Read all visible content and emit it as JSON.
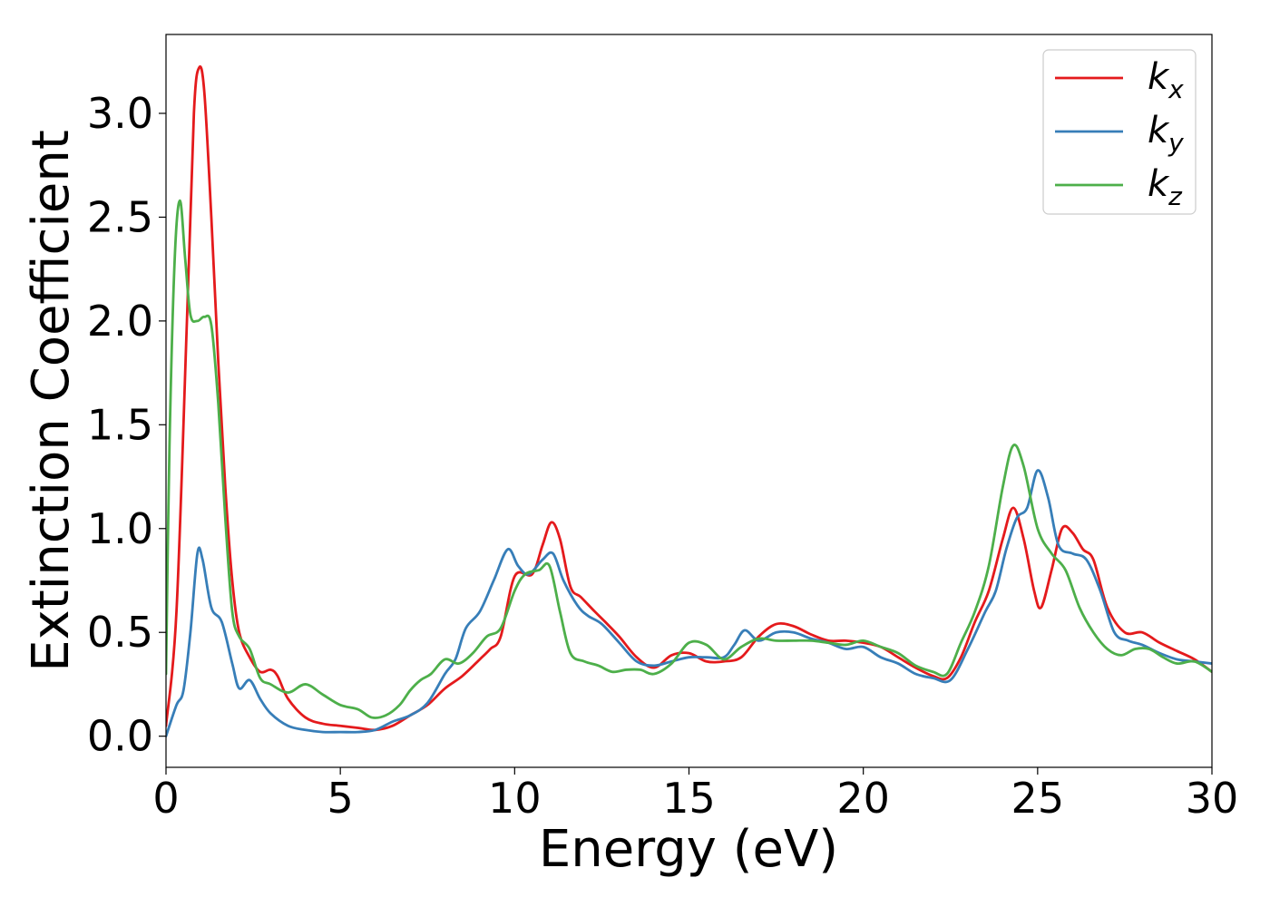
{
  "chart_data": {
    "type": "line",
    "xlabel": "Energy (eV)",
    "ylabel": "Extinction Coefficient",
    "xlim": [
      0,
      30
    ],
    "ylim": [
      -0.15,
      3.38
    ],
    "x_ticks": [
      0,
      5,
      10,
      15,
      20,
      25,
      30
    ],
    "y_ticks": [
      0.0,
      0.5,
      1.0,
      1.5,
      2.0,
      2.5,
      3.0
    ],
    "x_tick_labels": [
      "0",
      "5",
      "10",
      "15",
      "20",
      "25",
      "30"
    ],
    "y_tick_labels": [
      "0.0",
      "0.5",
      "1.0",
      "1.5",
      "2.0",
      "2.5",
      "3.0"
    ],
    "grid": false,
    "legend_position": "top-right",
    "series": [
      {
        "name": "k_x",
        "legend_base": "k",
        "legend_sub": "x",
        "color": "#e41a1c",
        "points": [
          [
            0,
            0.05
          ],
          [
            0.3,
            0.6
          ],
          [
            0.6,
            2.0
          ],
          [
            0.8,
            3.0
          ],
          [
            0.95,
            3.22
          ],
          [
            1.1,
            3.1
          ],
          [
            1.3,
            2.5
          ],
          [
            1.5,
            1.8
          ],
          [
            1.7,
            1.2
          ],
          [
            1.9,
            0.75
          ],
          [
            2.1,
            0.5
          ],
          [
            2.4,
            0.38
          ],
          [
            2.7,
            0.31
          ],
          [
            3.0,
            0.32
          ],
          [
            3.2,
            0.29
          ],
          [
            3.5,
            0.18
          ],
          [
            4.0,
            0.09
          ],
          [
            4.5,
            0.06
          ],
          [
            5.0,
            0.05
          ],
          [
            5.5,
            0.04
          ],
          [
            6.0,
            0.03
          ],
          [
            6.5,
            0.05
          ],
          [
            7.0,
            0.1
          ],
          [
            7.5,
            0.15
          ],
          [
            8.0,
            0.23
          ],
          [
            8.5,
            0.29
          ],
          [
            9.0,
            0.37
          ],
          [
            9.3,
            0.42
          ],
          [
            9.6,
            0.48
          ],
          [
            10.0,
            0.77
          ],
          [
            10.5,
            0.78
          ],
          [
            10.8,
            0.92
          ],
          [
            11.05,
            1.03
          ],
          [
            11.3,
            0.95
          ],
          [
            11.6,
            0.72
          ],
          [
            11.9,
            0.67
          ],
          [
            12.3,
            0.6
          ],
          [
            12.6,
            0.55
          ],
          [
            13.0,
            0.48
          ],
          [
            13.5,
            0.38
          ],
          [
            14.0,
            0.33
          ],
          [
            14.5,
            0.39
          ],
          [
            15.0,
            0.4
          ],
          [
            15.5,
            0.36
          ],
          [
            16.0,
            0.36
          ],
          [
            16.5,
            0.38
          ],
          [
            17.0,
            0.48
          ],
          [
            17.5,
            0.54
          ],
          [
            18.0,
            0.53
          ],
          [
            18.5,
            0.49
          ],
          [
            19.0,
            0.46
          ],
          [
            19.5,
            0.46
          ],
          [
            20.0,
            0.45
          ],
          [
            20.5,
            0.43
          ],
          [
            21.0,
            0.38
          ],
          [
            21.5,
            0.33
          ],
          [
            22.0,
            0.29
          ],
          [
            22.4,
            0.28
          ],
          [
            22.8,
            0.38
          ],
          [
            23.2,
            0.55
          ],
          [
            23.6,
            0.7
          ],
          [
            24.0,
            0.95
          ],
          [
            24.3,
            1.1
          ],
          [
            24.6,
            0.95
          ],
          [
            24.9,
            0.7
          ],
          [
            25.1,
            0.62
          ],
          [
            25.4,
            0.8
          ],
          [
            25.7,
            1.0
          ],
          [
            26.0,
            0.98
          ],
          [
            26.3,
            0.9
          ],
          [
            26.6,
            0.85
          ],
          [
            27.0,
            0.62
          ],
          [
            27.5,
            0.5
          ],
          [
            28.0,
            0.5
          ],
          [
            28.5,
            0.45
          ],
          [
            29.0,
            0.41
          ],
          [
            29.5,
            0.37
          ],
          [
            30.0,
            0.31
          ]
        ]
      },
      {
        "name": "k_y",
        "legend_base": "k",
        "legend_sub": "y",
        "color": "#377eb8",
        "points": [
          [
            0,
            0.0
          ],
          [
            0.3,
            0.15
          ],
          [
            0.5,
            0.22
          ],
          [
            0.7,
            0.5
          ],
          [
            0.9,
            0.88
          ],
          [
            1.05,
            0.85
          ],
          [
            1.3,
            0.62
          ],
          [
            1.6,
            0.55
          ],
          [
            1.9,
            0.35
          ],
          [
            2.1,
            0.23
          ],
          [
            2.4,
            0.27
          ],
          [
            2.7,
            0.18
          ],
          [
            3.0,
            0.11
          ],
          [
            3.5,
            0.05
          ],
          [
            4.0,
            0.03
          ],
          [
            4.5,
            0.02
          ],
          [
            5.0,
            0.02
          ],
          [
            5.5,
            0.02
          ],
          [
            6.0,
            0.03
          ],
          [
            6.5,
            0.07
          ],
          [
            7.0,
            0.1
          ],
          [
            7.5,
            0.16
          ],
          [
            8.0,
            0.3
          ],
          [
            8.3,
            0.37
          ],
          [
            8.6,
            0.52
          ],
          [
            9.0,
            0.6
          ],
          [
            9.4,
            0.75
          ],
          [
            9.8,
            0.9
          ],
          [
            10.1,
            0.82
          ],
          [
            10.4,
            0.78
          ],
          [
            10.8,
            0.85
          ],
          [
            11.1,
            0.88
          ],
          [
            11.4,
            0.75
          ],
          [
            11.8,
            0.63
          ],
          [
            12.1,
            0.58
          ],
          [
            12.5,
            0.54
          ],
          [
            13.0,
            0.45
          ],
          [
            13.5,
            0.36
          ],
          [
            14.0,
            0.34
          ],
          [
            14.5,
            0.36
          ],
          [
            15.0,
            0.38
          ],
          [
            15.5,
            0.38
          ],
          [
            16.0,
            0.38
          ],
          [
            16.3,
            0.44
          ],
          [
            16.6,
            0.51
          ],
          [
            17.0,
            0.46
          ],
          [
            17.5,
            0.5
          ],
          [
            18.0,
            0.5
          ],
          [
            18.5,
            0.47
          ],
          [
            19.0,
            0.45
          ],
          [
            19.5,
            0.42
          ],
          [
            20.0,
            0.43
          ],
          [
            20.5,
            0.38
          ],
          [
            21.0,
            0.35
          ],
          [
            21.5,
            0.3
          ],
          [
            22.0,
            0.28
          ],
          [
            22.5,
            0.27
          ],
          [
            23.0,
            0.42
          ],
          [
            23.5,
            0.6
          ],
          [
            23.8,
            0.7
          ],
          [
            24.1,
            0.9
          ],
          [
            24.4,
            1.05
          ],
          [
            24.7,
            1.1
          ],
          [
            25.0,
            1.28
          ],
          [
            25.3,
            1.15
          ],
          [
            25.6,
            0.92
          ],
          [
            26.0,
            0.88
          ],
          [
            26.4,
            0.85
          ],
          [
            26.8,
            0.7
          ],
          [
            27.2,
            0.5
          ],
          [
            27.6,
            0.46
          ],
          [
            28.0,
            0.44
          ],
          [
            28.5,
            0.4
          ],
          [
            29.0,
            0.37
          ],
          [
            29.5,
            0.36
          ],
          [
            30.0,
            0.35
          ]
        ]
      },
      {
        "name": "k_z",
        "legend_base": "k",
        "legend_sub": "z",
        "color": "#4daf4a",
        "points": [
          [
            0,
            0.3
          ],
          [
            0.1,
            1.4
          ],
          [
            0.25,
            2.3
          ],
          [
            0.4,
            2.58
          ],
          [
            0.55,
            2.3
          ],
          [
            0.7,
            2.03
          ],
          [
            0.9,
            2.0
          ],
          [
            1.1,
            2.02
          ],
          [
            1.3,
            1.98
          ],
          [
            1.5,
            1.6
          ],
          [
            1.7,
            1.05
          ],
          [
            1.9,
            0.6
          ],
          [
            2.1,
            0.48
          ],
          [
            2.4,
            0.42
          ],
          [
            2.7,
            0.28
          ],
          [
            3.0,
            0.25
          ],
          [
            3.5,
            0.21
          ],
          [
            4.0,
            0.25
          ],
          [
            4.5,
            0.2
          ],
          [
            5.0,
            0.15
          ],
          [
            5.5,
            0.13
          ],
          [
            5.9,
            0.09
          ],
          [
            6.3,
            0.1
          ],
          [
            6.7,
            0.15
          ],
          [
            7.0,
            0.22
          ],
          [
            7.3,
            0.27
          ],
          [
            7.6,
            0.3
          ],
          [
            8.0,
            0.37
          ],
          [
            8.4,
            0.35
          ],
          [
            8.8,
            0.4
          ],
          [
            9.2,
            0.48
          ],
          [
            9.6,
            0.52
          ],
          [
            10.0,
            0.7
          ],
          [
            10.3,
            0.78
          ],
          [
            10.7,
            0.8
          ],
          [
            11.0,
            0.82
          ],
          [
            11.3,
            0.6
          ],
          [
            11.6,
            0.4
          ],
          [
            12.0,
            0.36
          ],
          [
            12.4,
            0.34
          ],
          [
            12.8,
            0.31
          ],
          [
            13.2,
            0.32
          ],
          [
            13.6,
            0.32
          ],
          [
            14.0,
            0.3
          ],
          [
            14.5,
            0.35
          ],
          [
            15.0,
            0.45
          ],
          [
            15.5,
            0.44
          ],
          [
            16.0,
            0.37
          ],
          [
            16.5,
            0.43
          ],
          [
            17.0,
            0.47
          ],
          [
            17.5,
            0.46
          ],
          [
            18.0,
            0.46
          ],
          [
            18.5,
            0.46
          ],
          [
            19.0,
            0.45
          ],
          [
            19.5,
            0.44
          ],
          [
            20.0,
            0.46
          ],
          [
            20.5,
            0.43
          ],
          [
            21.0,
            0.4
          ],
          [
            21.5,
            0.34
          ],
          [
            22.0,
            0.31
          ],
          [
            22.4,
            0.3
          ],
          [
            22.8,
            0.45
          ],
          [
            23.2,
            0.6
          ],
          [
            23.6,
            0.82
          ],
          [
            24.0,
            1.2
          ],
          [
            24.3,
            1.4
          ],
          [
            24.6,
            1.3
          ],
          [
            25.0,
            1.0
          ],
          [
            25.4,
            0.88
          ],
          [
            25.8,
            0.8
          ],
          [
            26.2,
            0.62
          ],
          [
            26.6,
            0.5
          ],
          [
            27.0,
            0.42
          ],
          [
            27.4,
            0.39
          ],
          [
            27.8,
            0.42
          ],
          [
            28.2,
            0.42
          ],
          [
            28.6,
            0.38
          ],
          [
            29.0,
            0.35
          ],
          [
            29.5,
            0.36
          ],
          [
            30.0,
            0.31
          ]
        ]
      }
    ]
  }
}
